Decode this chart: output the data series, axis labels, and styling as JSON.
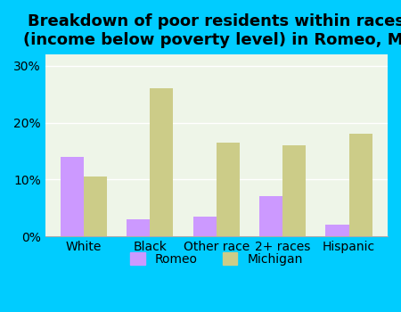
{
  "title": "Breakdown of poor residents within races\n(income below poverty level) in Romeo, MI",
  "categories": [
    "White",
    "Black",
    "Other race",
    "2+ races",
    "Hispanic"
  ],
  "romeo_values": [
    14.0,
    3.0,
    3.5,
    7.0,
    2.0
  ],
  "michigan_values": [
    10.5,
    26.0,
    16.5,
    16.0,
    18.0
  ],
  "romeo_color": "#cc99ff",
  "michigan_color": "#cccc88",
  "bg_outer": "#00ccff",
  "bg_plot": "#eef5e8",
  "ylim": [
    0,
    32
  ],
  "yticks": [
    0,
    10,
    20,
    30
  ],
  "ytick_labels": [
    "0%",
    "10%",
    "20%",
    "30%"
  ],
  "bar_width": 0.35,
  "legend_romeo": "Romeo",
  "legend_michigan": "Michigan",
  "title_fontsize": 13,
  "tick_fontsize": 10
}
